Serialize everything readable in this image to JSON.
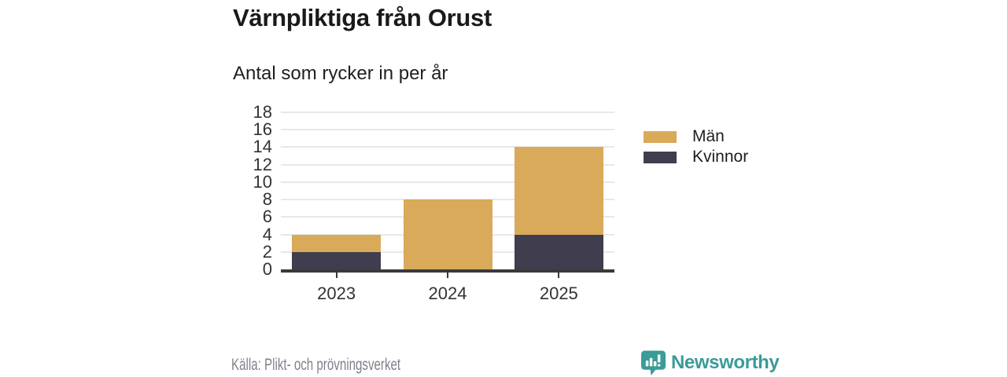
{
  "header": {
    "title": "Värnpliktiga från Orust",
    "subtitle": "Antal som rycker in per år"
  },
  "footer": {
    "source": "Källa: Plikt- och prövningsverket",
    "brand": "Newsworthy"
  },
  "colors": {
    "background": "#ffffff",
    "title": "#1a1a1a",
    "subtitle": "#1f1f1f",
    "tick_label": "#333333",
    "grid": "#e8e8e8",
    "axis": "#3a3a3a",
    "men": "#d9aa5a",
    "women": "#403d4e",
    "source": "#80808a",
    "brand": "#3a9b99"
  },
  "chart_data": {
    "type": "bar",
    "stacked": true,
    "title": "Värnpliktiga från Orust",
    "subtitle": "Antal som rycker in per år",
    "categories": [
      "2023",
      "2024",
      "2025"
    ],
    "series": [
      {
        "name": "Kvinnor",
        "color": "#403d4e",
        "values": [
          2,
          0,
          4
        ]
      },
      {
        "name": "Män",
        "color": "#d9aa5a",
        "values": [
          2,
          8,
          10
        ]
      }
    ],
    "totals": [
      4,
      8,
      14
    ],
    "ylim": [
      0,
      18
    ],
    "ytick_step": 2,
    "grid": true,
    "legend": [
      {
        "label": "Män",
        "color": "#d9aa5a"
      },
      {
        "label": "Kvinnor",
        "color": "#403d4e"
      }
    ],
    "legend_position": "right",
    "source": "Källa: Plikt- och prövningsverket"
  }
}
